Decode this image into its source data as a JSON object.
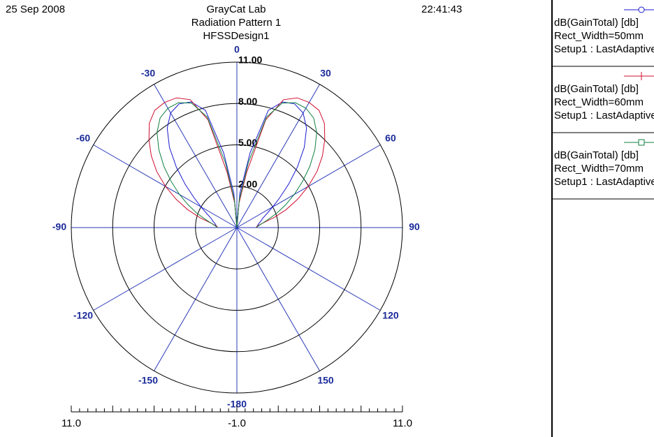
{
  "chart_data": {
    "type": "polar",
    "date": "25 Sep 2008",
    "time": "22:41:43",
    "title": "GrayCat Lab",
    "subtitle": "Radiation Pattern 1",
    "design": "HFSSDesign1",
    "rlim": [
      -1,
      11
    ],
    "rticks": [
      {
        "value": 2,
        "label": "2.00"
      },
      {
        "value": 5,
        "label": "5.00"
      },
      {
        "value": 8,
        "label": "8.00"
      },
      {
        "value": 11,
        "label": "11.00"
      }
    ],
    "thetaticks": [
      0,
      30,
      60,
      90,
      120,
      150,
      -180,
      -150,
      -120,
      -90,
      -60,
      -30
    ],
    "scale_ticks": [
      {
        "value": 11,
        "label": "11.0"
      },
      {
        "value": -1,
        "label": "-1.0"
      },
      {
        "value": 11,
        "label": "11.0"
      }
    ],
    "theta": [
      -90,
      -85,
      -80,
      -75,
      -70,
      -65,
      -60,
      -55,
      -50,
      -45,
      -40,
      -35,
      -30,
      -25,
      -20,
      -15,
      -10,
      -5,
      0,
      5,
      10,
      15,
      20,
      25,
      30,
      35,
      40,
      45,
      50,
      55,
      60,
      65,
      70,
      75,
      80,
      85,
      90
    ],
    "series": [
      {
        "name": "dB(GainTotal) [db]",
        "variation": "Rect_Width=50mm",
        "solution": "Setup1 : LastAdaptive",
        "color": "#1a1ad0",
        "marker": "circle",
        "values": [
          0.4,
          0.5,
          0.6,
          0.8,
          1.0,
          1.4,
          2.0,
          2.8,
          3.9,
          5.2,
          6.6,
          7.8,
          8.6,
          8.9,
          8.7,
          7.8,
          4.5,
          1.5,
          -1,
          1.5,
          4.5,
          7.8,
          8.7,
          8.9,
          8.6,
          7.8,
          6.6,
          5.2,
          3.9,
          2.8,
          2.0,
          1.4,
          1.0,
          0.8,
          0.6,
          0.5,
          0.4
        ]
      },
      {
        "name": "dB(GainTotal) [db]",
        "variation": "Rect_Width=60mm",
        "solution": "Setup1 : LastAdaptive",
        "color": "#d01030",
        "marker": "plus",
        "values": [
          0.37,
          0.52,
          0.92,
          1.78,
          2.8,
          3.86,
          4.97,
          6.09,
          7.1,
          8.01,
          8.87,
          9.38,
          9.48,
          9.38,
          8.87,
          7.1,
          3.05,
          0.77,
          -1,
          0.77,
          3.05,
          7.1,
          8.87,
          9.38,
          9.48,
          9.38,
          8.87,
          8.01,
          7.1,
          6.09,
          4.97,
          3.86,
          2.8,
          1.78,
          0.92,
          0.52,
          0.37
        ]
      },
      {
        "name": "dB(GainTotal) [db]",
        "variation": "Rect_Width=70mm",
        "solution": "Setup1 : LastAdaptive",
        "color": "#108040",
        "marker": "square",
        "values": [
          0.4,
          0.6,
          0.9,
          1.4,
          2.1,
          2.9,
          3.8,
          4.8,
          5.9,
          7.0,
          8.0,
          8.7,
          9.0,
          9.0,
          8.6,
          7.3,
          3.8,
          1.0,
          -1,
          1.0,
          3.8,
          7.3,
          8.6,
          9.0,
          9.0,
          8.7,
          8.0,
          7.0,
          5.9,
          4.8,
          3.8,
          2.9,
          2.1,
          1.4,
          0.9,
          0.6,
          0.4
        ]
      }
    ]
  }
}
